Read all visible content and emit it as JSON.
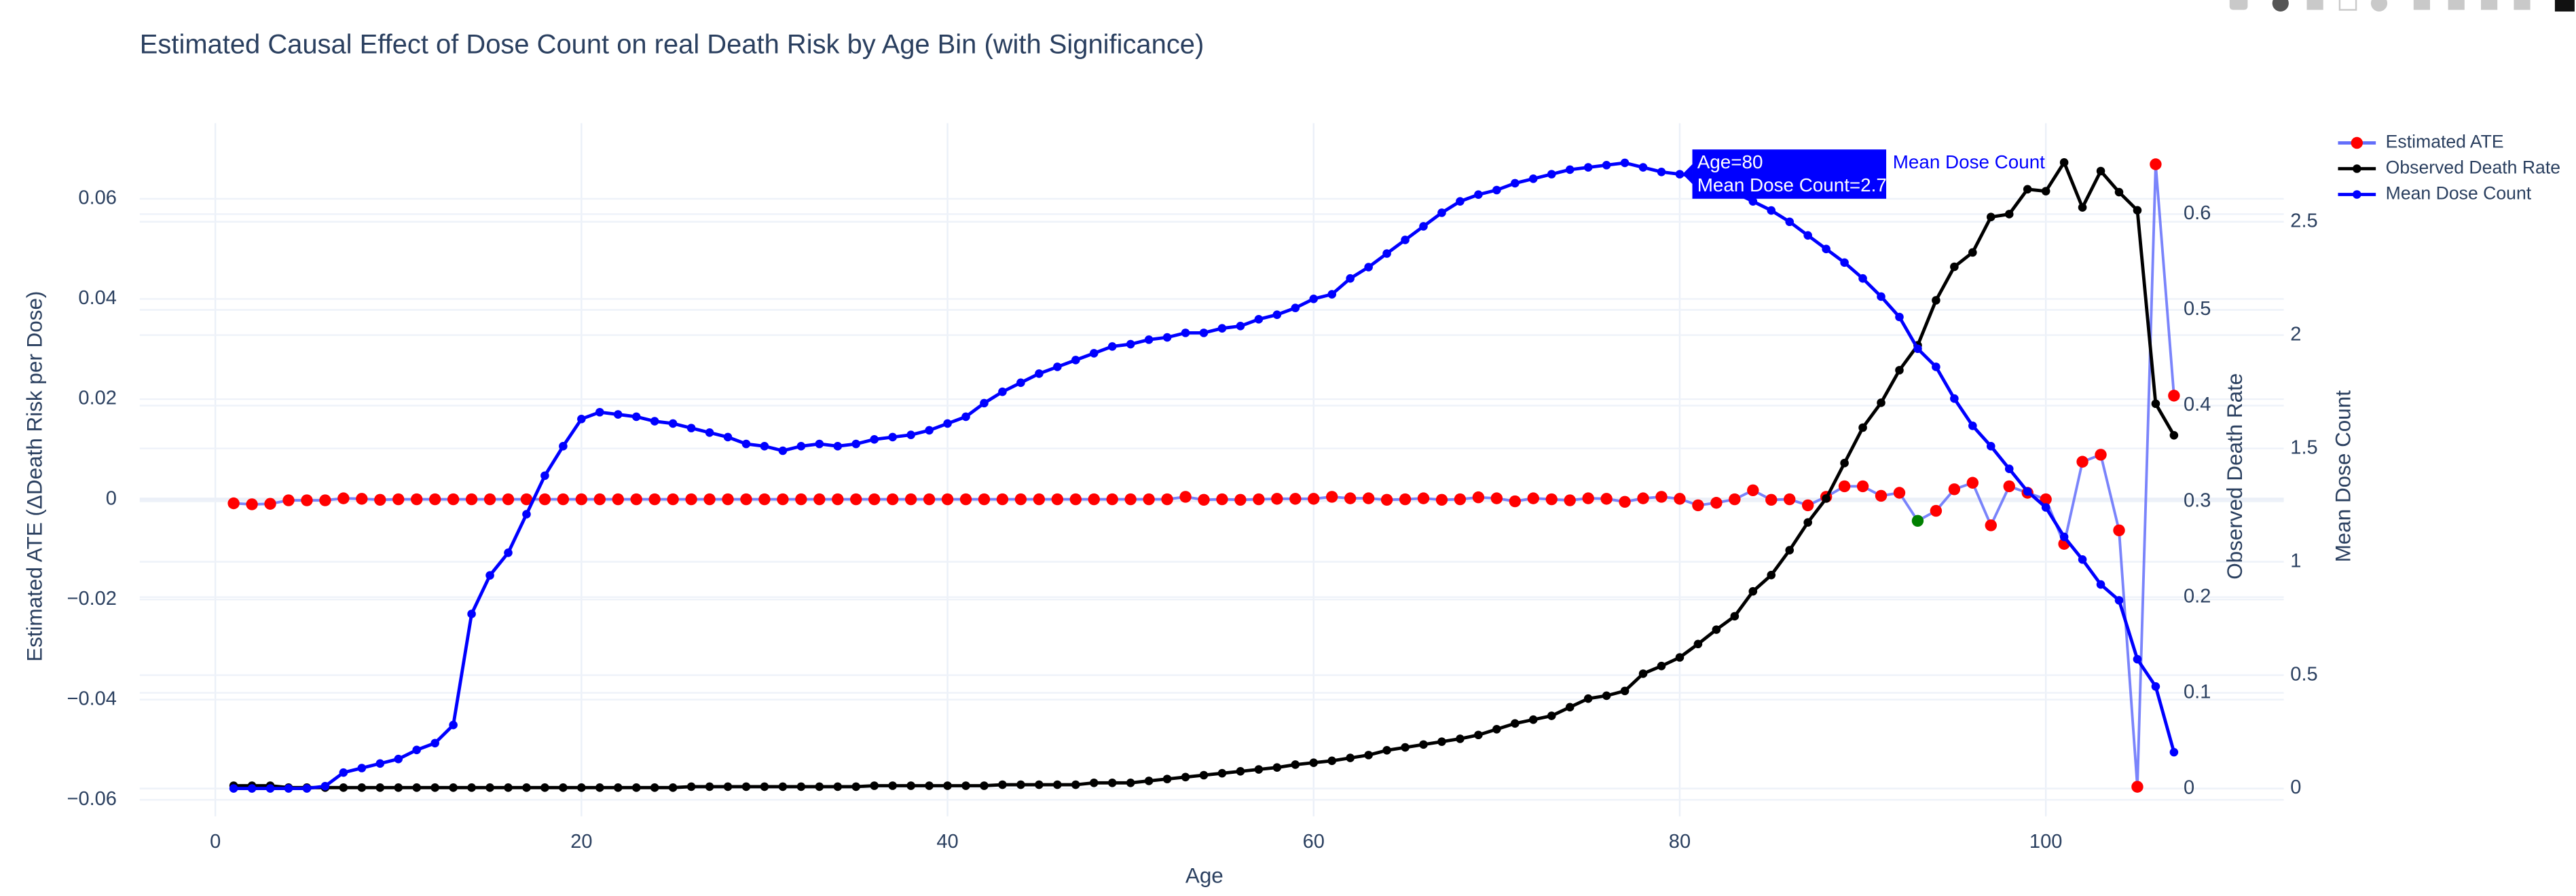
{
  "chart_data": {
    "type": "line",
    "title": "Estimated Causal Effect of Dose Count on real Death Risk by Age Bin (with Significance)",
    "x_label": "Age",
    "y_label": "Estimated ATE (ΔDeath Risk per Dose)",
    "y2_label": "Observed Death Rate",
    "y3_label": "Mean Dose Count",
    "x": [
      1,
      2,
      3,
      4,
      5,
      6,
      7,
      8,
      9,
      10,
      11,
      12,
      13,
      14,
      15,
      16,
      17,
      18,
      19,
      20,
      21,
      22,
      23,
      24,
      25,
      26,
      27,
      28,
      29,
      30,
      31,
      32,
      33,
      34,
      35,
      36,
      37,
      38,
      39,
      40,
      41,
      42,
      43,
      44,
      45,
      46,
      47,
      48,
      49,
      50,
      51,
      52,
      53,
      54,
      55,
      56,
      57,
      58,
      59,
      60,
      61,
      62,
      63,
      64,
      65,
      66,
      67,
      68,
      69,
      70,
      71,
      72,
      73,
      74,
      75,
      76,
      77,
      78,
      79,
      80,
      81,
      82,
      83,
      84,
      85,
      86,
      87,
      88,
      89,
      90,
      91,
      92,
      93,
      94,
      95,
      96,
      97,
      98,
      99,
      100,
      101,
      102,
      103,
      104,
      105,
      106,
      107
    ],
    "series": [
      {
        "name": "Estimated ATE",
        "axis": "y",
        "color": "#636efa",
        "marker_colors": [
          "red",
          "red",
          "red",
          "red",
          "red",
          "red",
          "red",
          "red",
          "red",
          "red",
          "red",
          "red",
          "red",
          "red",
          "red",
          "red",
          "red",
          "red",
          "red",
          "red",
          "red",
          "red",
          "red",
          "red",
          "red",
          "red",
          "red",
          "red",
          "red",
          "red",
          "red",
          "red",
          "red",
          "red",
          "red",
          "red",
          "red",
          "red",
          "red",
          "red",
          "red",
          "red",
          "red",
          "red",
          "red",
          "red",
          "red",
          "red",
          "red",
          "red",
          "red",
          "red",
          "red",
          "red",
          "red",
          "red",
          "red",
          "red",
          "red",
          "red",
          "red",
          "red",
          "red",
          "red",
          "red",
          "red",
          "red",
          "red",
          "red",
          "red",
          "red",
          "red",
          "red",
          "red",
          "red",
          "red",
          "red",
          "red",
          "red",
          "red",
          "red",
          "red",
          "red",
          "red",
          "red",
          "red",
          "red",
          "red",
          "red",
          "red",
          "red",
          "red",
          "green",
          "red",
          "red",
          "red",
          "red",
          "red",
          "red",
          "red",
          "red",
          "red",
          "red",
          "red",
          "red",
          "red",
          "red"
        ],
        "values": [
          -0.0008,
          -0.001,
          -0.0009,
          -0.0002,
          -0.0002,
          -0.0002,
          0.0002,
          0.0001,
          -0.0001,
          0,
          0,
          0,
          0,
          0,
          0,
          0,
          0,
          0,
          0,
          0,
          0,
          0,
          0,
          0,
          0,
          0,
          0,
          0,
          0,
          0,
          0,
          0,
          0,
          0,
          0,
          0,
          0,
          0,
          0,
          0,
          0,
          0,
          0,
          0,
          0,
          0,
          0,
          0,
          0,
          0,
          0,
          0,
          0.0005,
          -0.0001,
          0,
          -0.0001,
          0,
          0.0001,
          0.0001,
          0.0001,
          0.0005,
          0.0002,
          0.0002,
          -0.0001,
          0,
          0.0002,
          -0.0001,
          0,
          0.0004,
          0.0002,
          -0.0004,
          0.0002,
          0,
          -0.0002,
          0.0002,
          0.0001,
          -0.0005,
          0.0002,
          0.0005,
          0.0001,
          -0.0012,
          -0.0007,
          0,
          0.0018,
          -0.0001,
          0,
          -0.0012,
          0.0005,
          0.0026,
          0.0026,
          0.0007,
          0.0013,
          -0.0043,
          -0.0023,
          0.002,
          0.0033,
          -0.0052,
          0.0026,
          0.0013,
          0,
          -0.0089,
          0.0075,
          0.0089,
          -0.0062,
          -0.0574,
          0.0669,
          0.0207
        ]
      },
      {
        "name": "Observed Death Rate",
        "axis": "y2",
        "color": "black",
        "values": [
          0.003,
          0.003,
          0.003,
          0.001,
          0.001,
          0.001,
          0.001,
          0.001,
          0.001,
          0.001,
          0.001,
          0.001,
          0.001,
          0.001,
          0.001,
          0.001,
          0.001,
          0.001,
          0.001,
          0.001,
          0.001,
          0.001,
          0.001,
          0.001,
          0.001,
          0.002,
          0.002,
          0.002,
          0.002,
          0.002,
          0.002,
          0.002,
          0.002,
          0.002,
          0.002,
          0.003,
          0.003,
          0.003,
          0.003,
          0.003,
          0.003,
          0.003,
          0.004,
          0.004,
          0.004,
          0.004,
          0.004,
          0.006,
          0.006,
          0.006,
          0.008,
          0.01,
          0.012,
          0.014,
          0.016,
          0.018,
          0.02,
          0.022,
          0.025,
          0.027,
          0.029,
          0.032,
          0.035,
          0.04,
          0.043,
          0.046,
          0.049,
          0.052,
          0.056,
          0.062,
          0.068,
          0.072,
          0.076,
          0.085,
          0.094,
          0.097,
          0.102,
          0.12,
          0.128,
          0.137,
          0.151,
          0.166,
          0.18,
          0.206,
          0.223,
          0.249,
          0.278,
          0.303,
          0.34,
          0.377,
          0.403,
          0.437,
          0.463,
          0.51,
          0.545,
          0.56,
          0.597,
          0.6,
          0.626,
          0.624,
          0.654,
          0.607,
          0.645,
          0.623,
          0.604,
          0.402,
          0.369
        ]
      },
      {
        "name": "Mean Dose Count",
        "axis": "y3",
        "color": "blue",
        "values": [
          0,
          0,
          0,
          0,
          0,
          0.01,
          0.07,
          0.09,
          0.11,
          0.13,
          0.17,
          0.2,
          0.28,
          0.77,
          0.94,
          1.04,
          1.21,
          1.38,
          1.51,
          1.63,
          1.66,
          1.65,
          1.64,
          1.62,
          1.61,
          1.59,
          1.57,
          1.55,
          1.52,
          1.51,
          1.49,
          1.51,
          1.52,
          1.51,
          1.52,
          1.54,
          1.55,
          1.56,
          1.58,
          1.61,
          1.64,
          1.7,
          1.75,
          1.79,
          1.83,
          1.86,
          1.89,
          1.92,
          1.95,
          1.96,
          1.98,
          1.99,
          2.01,
          2.01,
          2.03,
          2.04,
          2.07,
          2.09,
          2.12,
          2.16,
          2.18,
          2.25,
          2.3,
          2.36,
          2.42,
          2.48,
          2.54,
          2.59,
          2.62,
          2.64,
          2.67,
          2.69,
          2.71,
          2.73,
          2.74,
          2.75,
          2.76,
          2.74,
          2.72,
          2.71,
          2.7,
          2.67,
          2.63,
          2.59,
          2.55,
          2.5,
          2.44,
          2.38,
          2.32,
          2.25,
          2.17,
          2.08,
          1.94,
          1.86,
          1.72,
          1.6,
          1.51,
          1.41,
          1.31,
          1.24,
          1.11,
          1.01,
          0.9,
          0.83,
          0.57,
          0.45,
          0.16
        ]
      }
    ],
    "xlim": [
      -4.13,
      113
    ],
    "xticks": [
      0,
      20,
      40,
      60,
      80,
      100
    ],
    "ylim": [
      -0.0633,
      0.0751
    ],
    "yticks": [
      {
        "value": -0.06,
        "label": "−0.06"
      },
      {
        "value": -0.04,
        "label": "−0.04"
      },
      {
        "value": -0.02,
        "label": "−0.02"
      },
      0,
      0.02,
      0.04,
      0.06
    ],
    "y2lim": [
      -0.029,
      0.695
    ],
    "y2ticks": [
      0,
      0.1,
      0.2,
      0.3,
      0.4,
      0.5,
      0.6
    ],
    "y3lim": [
      -0.123,
      2.935
    ],
    "y3ticks": [
      0,
      0.5,
      1,
      1.5,
      2,
      2.5
    ],
    "grid": true,
    "legend": "top-right",
    "hover": {
      "lines": [
        "Age=80",
        "Mean Dose Count=2.71"
      ]
    }
  }
}
